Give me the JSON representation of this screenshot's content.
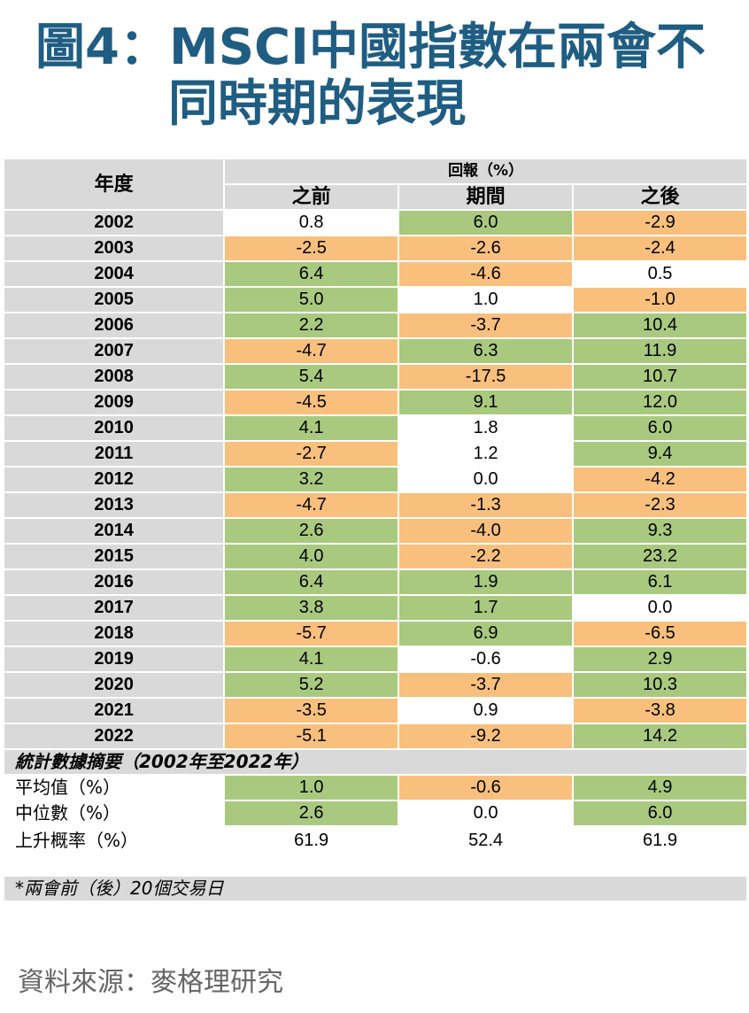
{
  "title": {
    "line1": "圖4：MSCI中國指數在兩會不",
    "line2": "同時期的表現"
  },
  "chart_data": {
    "type": "table",
    "header": {
      "year_col": "年度",
      "group": "回報（%）",
      "columns": [
        "之前",
        "期間",
        "之後"
      ]
    },
    "rows": [
      {
        "year": "2002",
        "values": [
          "0.8",
          "6.0",
          "-2.9"
        ],
        "colors": [
          "w",
          "g",
          "o"
        ]
      },
      {
        "year": "2003",
        "values": [
          "-2.5",
          "-2.6",
          "-2.4"
        ],
        "colors": [
          "o",
          "o",
          "o"
        ]
      },
      {
        "year": "2004",
        "values": [
          "6.4",
          "-4.6",
          "0.5"
        ],
        "colors": [
          "g",
          "o",
          "w"
        ]
      },
      {
        "year": "2005",
        "values": [
          "5.0",
          "1.0",
          "-1.0"
        ],
        "colors": [
          "g",
          "w",
          "o"
        ]
      },
      {
        "year": "2006",
        "values": [
          "2.2",
          "-3.7",
          "10.4"
        ],
        "colors": [
          "g",
          "o",
          "g"
        ]
      },
      {
        "year": "2007",
        "values": [
          "-4.7",
          "6.3",
          "11.9"
        ],
        "colors": [
          "o",
          "g",
          "g"
        ]
      },
      {
        "year": "2008",
        "values": [
          "5.4",
          "-17.5",
          "10.7"
        ],
        "colors": [
          "g",
          "o",
          "g"
        ]
      },
      {
        "year": "2009",
        "values": [
          "-4.5",
          "9.1",
          "12.0"
        ],
        "colors": [
          "o",
          "g",
          "g"
        ]
      },
      {
        "year": "2010",
        "values": [
          "4.1",
          "1.8",
          "6.0"
        ],
        "colors": [
          "g",
          "w",
          "g"
        ]
      },
      {
        "year": "2011",
        "values": [
          "-2.7",
          "1.2",
          "9.4"
        ],
        "colors": [
          "o",
          "w",
          "g"
        ]
      },
      {
        "year": "2012",
        "values": [
          "3.2",
          "0.0",
          "-4.2"
        ],
        "colors": [
          "g",
          "w",
          "o"
        ]
      },
      {
        "year": "2013",
        "values": [
          "-4.7",
          "-1.3",
          "-2.3"
        ],
        "colors": [
          "o",
          "o",
          "o"
        ]
      },
      {
        "year": "2014",
        "values": [
          "2.6",
          "-4.0",
          "9.3"
        ],
        "colors": [
          "g",
          "o",
          "g"
        ]
      },
      {
        "year": "2015",
        "values": [
          "4.0",
          "-2.2",
          "23.2"
        ],
        "colors": [
          "g",
          "o",
          "g"
        ]
      },
      {
        "year": "2016",
        "values": [
          "6.4",
          "1.9",
          "6.1"
        ],
        "colors": [
          "g",
          "g",
          "g"
        ]
      },
      {
        "year": "2017",
        "values": [
          "3.8",
          "1.7",
          "0.0"
        ],
        "colors": [
          "g",
          "g",
          "w"
        ]
      },
      {
        "year": "2018",
        "values": [
          "-5.7",
          "6.9",
          "-6.5"
        ],
        "colors": [
          "o",
          "g",
          "o"
        ]
      },
      {
        "year": "2019",
        "values": [
          "4.1",
          "-0.6",
          "2.9"
        ],
        "colors": [
          "g",
          "w",
          "g"
        ]
      },
      {
        "year": "2020",
        "values": [
          "5.2",
          "-3.7",
          "10.3"
        ],
        "colors": [
          "g",
          "o",
          "g"
        ]
      },
      {
        "year": "2021",
        "values": [
          "-3.5",
          "0.9",
          "-3.8"
        ],
        "colors": [
          "o",
          "w",
          "o"
        ]
      },
      {
        "year": "2022",
        "values": [
          "-5.1",
          "-9.2",
          "14.2"
        ],
        "colors": [
          "o",
          "o",
          "g"
        ]
      }
    ],
    "summary_title": "統計數據摘要（2002年至2022年）",
    "summary": [
      {
        "label": "平均值（%）",
        "values": [
          "1.0",
          "-0.6",
          "4.9"
        ],
        "colors": [
          "g",
          "o",
          "g"
        ]
      },
      {
        "label": "中位數（%）",
        "values": [
          "2.6",
          "0.0",
          "6.0"
        ],
        "colors": [
          "g",
          "w",
          "g"
        ]
      },
      {
        "label": "上升概率（%）",
        "values": [
          "61.9",
          "52.4",
          "61.9"
        ],
        "colors": [
          "w",
          "w",
          "w"
        ]
      }
    ],
    "note": "*兩會前（後）20個交易日"
  },
  "colors": {
    "title": "#1f5d82",
    "green": "#a9c97f",
    "orange": "#f8c07c",
    "header_gray": "#d9d9d9"
  },
  "source": "資料來源：麥格理研究"
}
